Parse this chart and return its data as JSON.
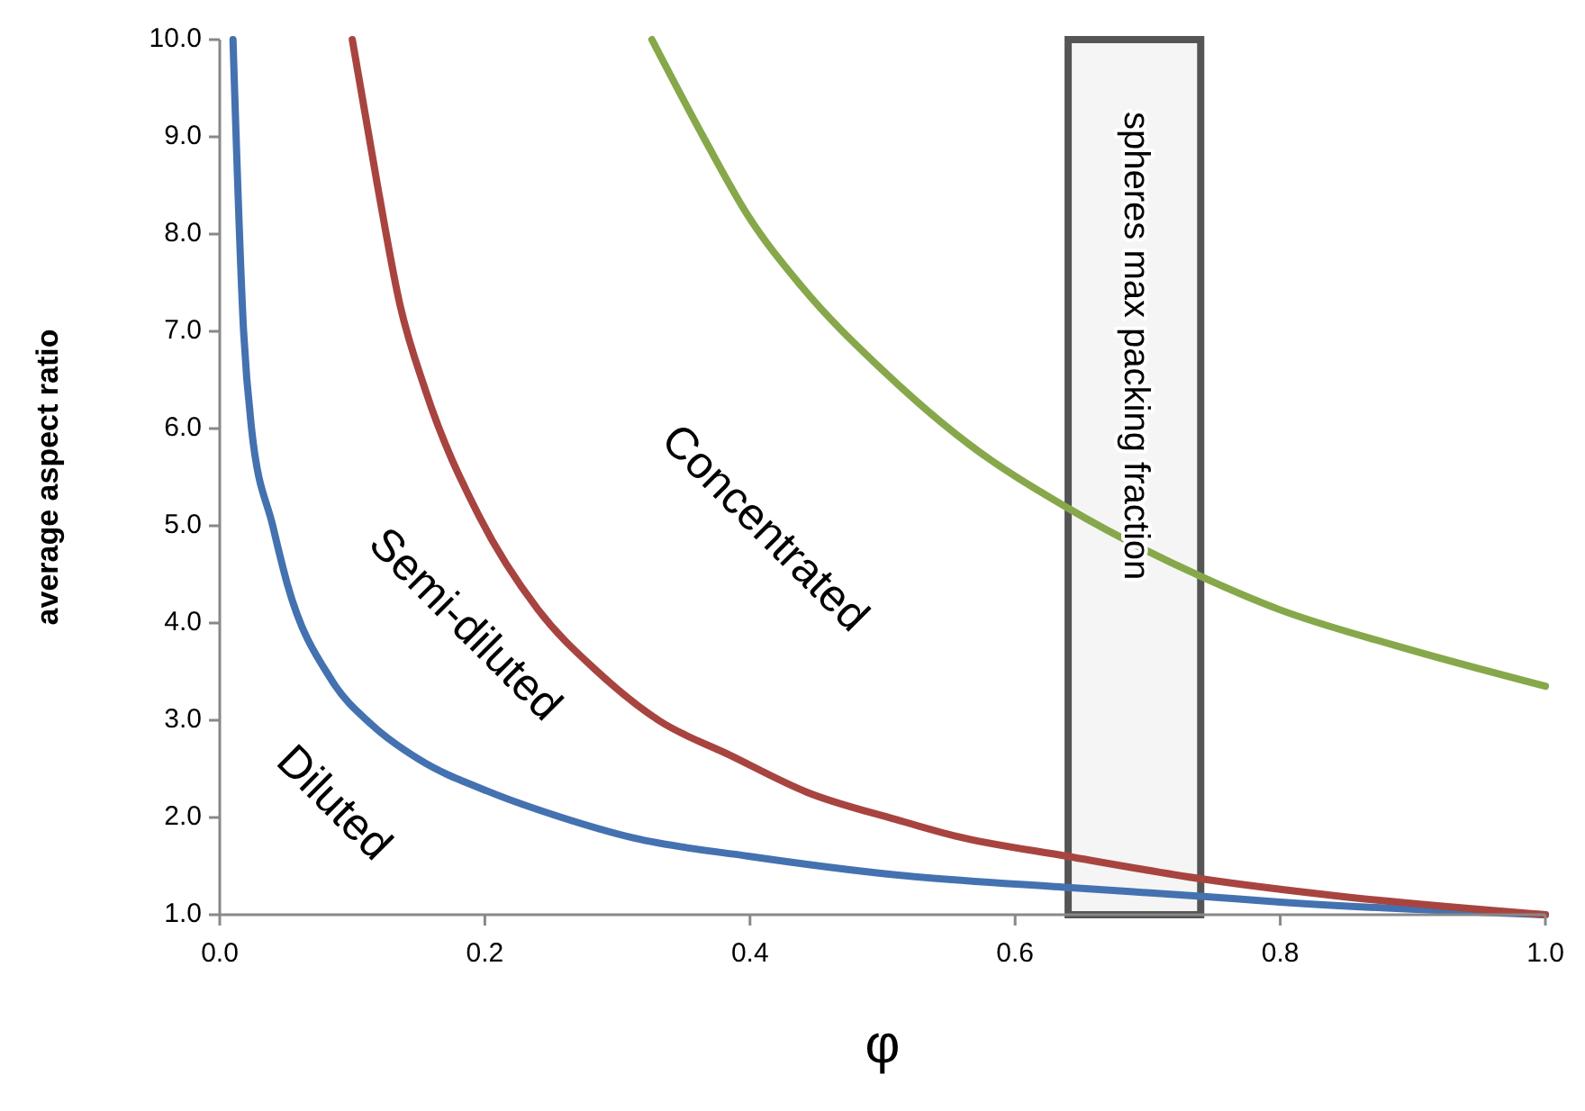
{
  "chart_data": {
    "type": "line",
    "xlabel": "φ",
    "ylabel": "average aspect ratio",
    "xlim": [
      0,
      1
    ],
    "ylim": [
      1,
      10
    ],
    "xticks": [
      {
        "value": 0,
        "label": "0.0"
      },
      0.2,
      0.4,
      0.6,
      0.8,
      {
        "value": 1,
        "label": "1.0"
      }
    ],
    "yticks": [
      {
        "value": 1,
        "label": "1.0"
      },
      {
        "value": 2,
        "label": "2.0"
      },
      {
        "value": 3,
        "label": "3.0"
      },
      {
        "value": 4,
        "label": "4.0"
      },
      {
        "value": 5,
        "label": "5.0"
      },
      {
        "value": 6,
        "label": "6.0"
      },
      {
        "value": 7,
        "label": "7.0"
      },
      {
        "value": 8,
        "label": "8.0"
      },
      {
        "value": 9,
        "label": "9.0"
      },
      {
        "value": 10,
        "label": "10.0"
      }
    ],
    "grid": false,
    "marker": "none",
    "line_style": "solid",
    "series": [
      {
        "color": "#4472b0",
        "x": [
          0.01,
          0.018,
          0.024,
          0.04,
          0.051,
          0.085,
          0.115,
          0.15,
          0.204,
          0.258,
          0.312,
          0.4,
          0.51,
          0.64,
          0.74,
          0.8,
          1.0
        ],
        "values": [
          10,
          7.0,
          6.0,
          5.0,
          4.4,
          3.4,
          2.95,
          2.6,
          2.26,
          2.0,
          1.79,
          1.6,
          1.41,
          1.28,
          1.19,
          1.13,
          1.0
        ]
      },
      {
        "color": "#a84440",
        "x": [
          0.1,
          0.119,
          0.136,
          0.155,
          0.196,
          0.24,
          0.285,
          0.331,
          0.385,
          0.443,
          0.51,
          0.555,
          0.64,
          0.74,
          0.845,
          1.0
        ],
        "values": [
          10,
          8.5,
          7.27,
          6.4,
          5.09,
          4.14,
          3.5,
          3.0,
          2.64,
          2.26,
          1.98,
          1.81,
          1.6,
          1.37,
          1.19,
          1.0
        ]
      },
      {
        "color": "#86a84a",
        "x": [
          0.326,
          0.366,
          0.398,
          0.439,
          0.5,
          0.565,
          0.64,
          0.74,
          0.799,
          0.889,
          1.0
        ],
        "values": [
          10,
          8.97,
          8.2,
          7.46,
          6.6,
          5.84,
          5.18,
          4.48,
          4.14,
          3.76,
          3.35
        ]
      }
    ],
    "bands": [
      {
        "axis": "x",
        "from": 0.64,
        "to": 0.74,
        "label": "spheres  max packing fraction",
        "color": "#555555"
      }
    ],
    "annotations": [
      "Diluted",
      "Semi-diluted",
      "Concentrated"
    ]
  }
}
